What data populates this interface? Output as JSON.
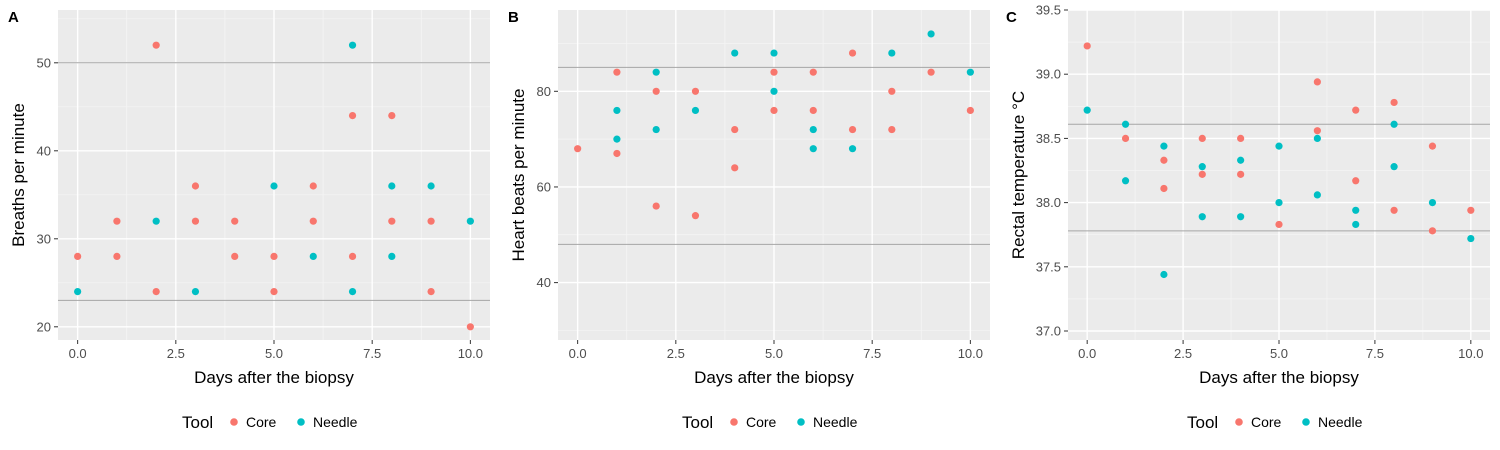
{
  "chart_data": [
    {
      "type": "scatter",
      "panel_label": "A",
      "xlabel": "Days after the biopsy",
      "ylabel": "Breaths per minute",
      "xlim": [
        -0.5,
        10.5
      ],
      "ylim": [
        18.5,
        56
      ],
      "xticks": [
        0,
        2.5,
        5,
        7.5,
        10
      ],
      "xtick_labels": [
        "0.0",
        "2.5",
        "5.0",
        "7.5",
        "10.0"
      ],
      "yticks": [
        20,
        30,
        40,
        50
      ],
      "ytick_labels": [
        "20",
        "30",
        "40",
        "50"
      ],
      "reference_lines": [
        23,
        50
      ],
      "series": [
        {
          "name": "Core",
          "color": "#F8766D",
          "points": [
            [
              0,
              28
            ],
            [
              1,
              32
            ],
            [
              1,
              28
            ],
            [
              2,
              52
            ],
            [
              2,
              24
            ],
            [
              3,
              36
            ],
            [
              3,
              32
            ],
            [
              4,
              32
            ],
            [
              4,
              28
            ],
            [
              5,
              28
            ],
            [
              5,
              24
            ],
            [
              6,
              36
            ],
            [
              6,
              32
            ],
            [
              7,
              44
            ],
            [
              7,
              28
            ],
            [
              8,
              44
            ],
            [
              8,
              32
            ],
            [
              9,
              32
            ],
            [
              9,
              24
            ],
            [
              10,
              20
            ]
          ]
        },
        {
          "name": "Needle",
          "color": "#00BFC4",
          "points": [
            [
              0,
              24
            ],
            [
              2,
              32
            ],
            [
              3,
              24
            ],
            [
              5,
              36
            ],
            [
              6,
              28
            ],
            [
              7,
              52
            ],
            [
              7,
              24
            ],
            [
              8,
              36
            ],
            [
              8,
              28
            ],
            [
              9,
              36
            ],
            [
              10,
              32
            ]
          ]
        }
      ]
    },
    {
      "type": "scatter",
      "panel_label": "B",
      "xlabel": "Days after the biopsy",
      "ylabel": "Heart beats per minute",
      "xlim": [
        -0.5,
        10.5
      ],
      "ylim": [
        28,
        97
      ],
      "xticks": [
        0,
        2.5,
        5,
        7.5,
        10
      ],
      "xtick_labels": [
        "0.0",
        "2.5",
        "5.0",
        "7.5",
        "10.0"
      ],
      "yticks": [
        40,
        60,
        80
      ],
      "ytick_labels": [
        "40",
        "60",
        "80"
      ],
      "reference_lines": [
        48,
        85
      ],
      "series": [
        {
          "name": "Core",
          "color": "#F8766D",
          "points": [
            [
              0,
              68
            ],
            [
              1,
              84
            ],
            [
              1,
              67
            ],
            [
              2,
              80
            ],
            [
              2,
              56
            ],
            [
              3,
              80
            ],
            [
              3,
              54
            ],
            [
              4,
              72
            ],
            [
              4,
              64
            ],
            [
              5,
              84
            ],
            [
              5,
              76
            ],
            [
              6,
              84
            ],
            [
              6,
              76
            ],
            [
              7,
              88
            ],
            [
              7,
              72
            ],
            [
              8,
              80
            ],
            [
              8,
              72
            ],
            [
              9,
              84
            ],
            [
              10,
              76
            ]
          ]
        },
        {
          "name": "Needle",
          "color": "#00BFC4",
          "points": [
            [
              1,
              76
            ],
            [
              1,
              70
            ],
            [
              2,
              84
            ],
            [
              2,
              72
            ],
            [
              3,
              76
            ],
            [
              4,
              88
            ],
            [
              5,
              88
            ],
            [
              5,
              80
            ],
            [
              6,
              72
            ],
            [
              6,
              68
            ],
            [
              7,
              68
            ],
            [
              8,
              88
            ],
            [
              9,
              92
            ],
            [
              10,
              84
            ]
          ]
        }
      ]
    },
    {
      "type": "scatter",
      "panel_label": "C",
      "xlabel": "Days after the biopsy",
      "ylabel": "Rectal temperature °C",
      "xlim": [
        -0.5,
        10.5
      ],
      "ylim": [
        36.93,
        39.5
      ],
      "xticks": [
        0,
        2.5,
        5,
        7.5,
        10
      ],
      "xtick_labels": [
        "0.0",
        "2.5",
        "5.0",
        "7.5",
        "10.0"
      ],
      "yticks": [
        37.0,
        37.5,
        38.0,
        38.5,
        39.0,
        39.5
      ],
      "ytick_labels": [
        "37.0",
        "37.5",
        "38.0",
        "38.5",
        "39.0",
        "39.5"
      ],
      "reference_lines": [
        37.78,
        38.61
      ],
      "series": [
        {
          "name": "Core",
          "color": "#F8766D",
          "points": [
            [
              0,
              39.22
            ],
            [
              1,
              38.5
            ],
            [
              2,
              38.33
            ],
            [
              2,
              38.11
            ],
            [
              3,
              38.5
            ],
            [
              3,
              38.22
            ],
            [
              4,
              38.5
            ],
            [
              4,
              38.22
            ],
            [
              5,
              37.83
            ],
            [
              6,
              38.94
            ],
            [
              6,
              38.56
            ],
            [
              7,
              38.72
            ],
            [
              7,
              38.17
            ],
            [
              8,
              38.78
            ],
            [
              8,
              37.94
            ],
            [
              9,
              38.44
            ],
            [
              9,
              37.78
            ],
            [
              10,
              37.94
            ]
          ]
        },
        {
          "name": "Needle",
          "color": "#00BFC4",
          "points": [
            [
              0,
              38.72
            ],
            [
              1,
              38.61
            ],
            [
              1,
              38.17
            ],
            [
              2,
              38.44
            ],
            [
              2,
              37.44
            ],
            [
              3,
              38.28
            ],
            [
              3,
              37.89
            ],
            [
              4,
              38.33
            ],
            [
              4,
              37.89
            ],
            [
              5,
              38.44
            ],
            [
              5,
              38.0
            ],
            [
              6,
              38.5
            ],
            [
              6,
              38.06
            ],
            [
              7,
              37.94
            ],
            [
              7,
              37.83
            ],
            [
              8,
              38.61
            ],
            [
              8,
              38.28
            ],
            [
              9,
              38.0
            ],
            [
              10,
              37.72
            ]
          ]
        }
      ]
    }
  ],
  "legend": {
    "title": "Tool",
    "items": [
      {
        "label": "Core",
        "color": "#F8766D"
      },
      {
        "label": "Needle",
        "color": "#00BFC4"
      }
    ]
  }
}
